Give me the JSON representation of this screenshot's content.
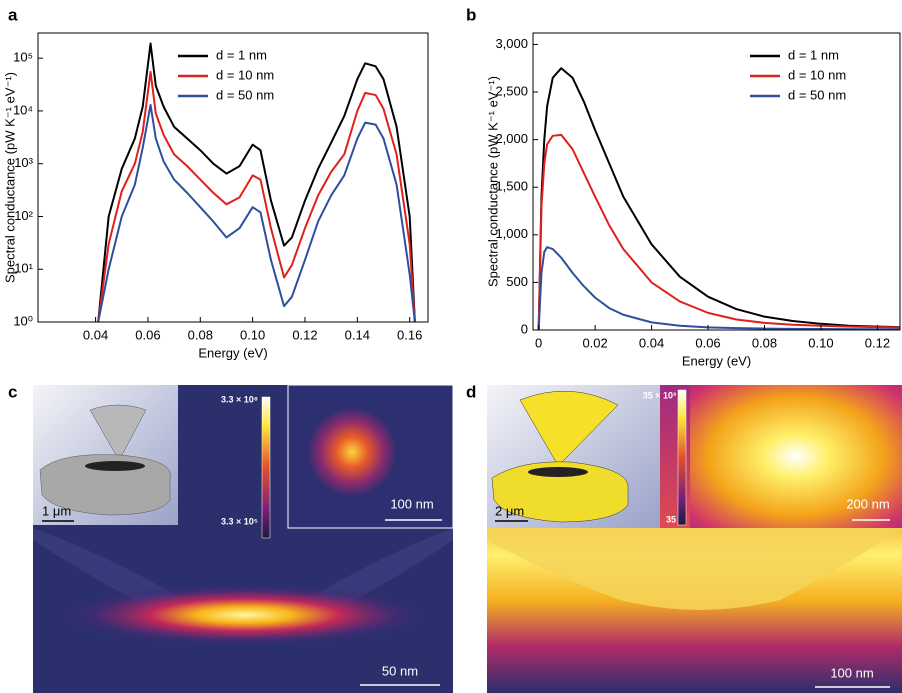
{
  "chart_data": [
    {
      "type": "line",
      "panel_label": "a",
      "x_label": "Energy (eV)",
      "y_label": "Spectral conductance (pW K⁻¹ eV⁻¹)",
      "yscale": "log",
      "legend": "upper center",
      "xlim": [
        0.018,
        0.167
      ],
      "ylim": [
        1,
        300000
      ],
      "xticks": [
        0.04,
        0.06,
        0.08,
        {
          "value": 0.1,
          "label": "0.10"
        },
        0.12,
        0.14,
        0.16
      ],
      "yticks": [
        {
          "value": 1,
          "label": "10⁰"
        },
        {
          "value": 10,
          "label": "10¹"
        },
        {
          "value": 100,
          "label": "10²"
        },
        {
          "value": 1000,
          "label": "10³"
        },
        {
          "value": 10000,
          "label": "10⁴"
        },
        {
          "value": 100000,
          "label": "10⁵"
        }
      ],
      "x": [
        0.041,
        0.045,
        0.05,
        0.055,
        0.058,
        0.061,
        0.063,
        0.066,
        0.07,
        0.075,
        0.08,
        0.085,
        0.09,
        0.095,
        0.1,
        0.103,
        0.107,
        0.112,
        0.115,
        0.12,
        0.125,
        0.13,
        0.135,
        0.14,
        0.143,
        0.147,
        0.15,
        0.155,
        0.16,
        0.162
      ],
      "series": [
        {
          "name": "d = 1 nm",
          "color": "#000000",
          "values": [
            1,
            100,
            800,
            3000,
            12000,
            190000,
            30000,
            12000,
            5000,
            3000,
            1800,
            1000,
            650,
            900,
            2300,
            1800,
            200,
            28,
            40,
            200,
            800,
            2500,
            8000,
            40000,
            80000,
            70000,
            40000,
            5000,
            100,
            1
          ]
        },
        {
          "name": "d = 10 nm",
          "color": "#e0201b",
          "values": [
            1,
            30,
            300,
            1000,
            4000,
            55000,
            9000,
            3500,
            1500,
            900,
            500,
            280,
            170,
            230,
            600,
            500,
            60,
            7,
            12,
            60,
            250,
            700,
            1500,
            10000,
            22000,
            20000,
            11000,
            1500,
            30,
            1
          ]
        },
        {
          "name": "d = 50 nm",
          "color": "#2d4f9e",
          "values": [
            1,
            10,
            100,
            400,
            2000,
            13000,
            3000,
            1100,
            500,
            280,
            150,
            80,
            40,
            60,
            150,
            120,
            15,
            2,
            3,
            15,
            80,
            250,
            600,
            3000,
            6000,
            5500,
            3000,
            400,
            8,
            1
          ]
        }
      ]
    },
    {
      "type": "line",
      "panel_label": "b",
      "x_label": "Energy (eV)",
      "y_label": "Spectral conductance (pW K⁻¹ eV⁻¹)",
      "yscale": "linear",
      "legend": "upper right",
      "xlim": [
        -0.002,
        0.128
      ],
      "ylim": [
        0,
        3120
      ],
      "xticks": [
        0,
        0.02,
        0.04,
        0.06,
        0.08,
        {
          "value": 0.1,
          "label": "0.10"
        },
        0.12
      ],
      "yticks": [
        0,
        500,
        {
          "value": 1000,
          "label": "1,000"
        },
        {
          "value": 1500,
          "label": "1,500"
        },
        {
          "value": 2000,
          "label": "2,000"
        },
        {
          "value": 2500,
          "label": "2,500"
        },
        {
          "value": 3000,
          "label": "3,000"
        }
      ],
      "x": [
        0,
        0.001,
        0.002,
        0.003,
        0.005,
        0.008,
        0.012,
        0.016,
        0.02,
        0.025,
        0.03,
        0.04,
        0.05,
        0.06,
        0.07,
        0.08,
        0.09,
        0.1,
        0.11,
        0.12,
        0.128
      ],
      "series": [
        {
          "name": "d = 1 nm",
          "color": "#000000",
          "values": [
            0,
            1400,
            2000,
            2350,
            2650,
            2750,
            2650,
            2400,
            2100,
            1750,
            1400,
            900,
            560,
            350,
            220,
            140,
            95,
            65,
            45,
            35,
            30
          ]
        },
        {
          "name": "d = 10 nm",
          "color": "#e0201b",
          "values": [
            0,
            1300,
            1750,
            1950,
            2040,
            2050,
            1900,
            1650,
            1400,
            1100,
            850,
            500,
            300,
            180,
            110,
            75,
            55,
            45,
            35,
            30,
            28
          ]
        },
        {
          "name": "d = 50 nm",
          "color": "#2d4f9e",
          "values": [
            0,
            600,
            820,
            870,
            850,
            760,
            600,
            460,
            340,
            230,
            160,
            80,
            45,
            28,
            20,
            15,
            12,
            10,
            9,
            8,
            8
          ]
        }
      ]
    }
  ],
  "panels": {
    "c": {
      "label": "c",
      "scale_inset": "1 μm",
      "colorbar_max": "3.3 × 10⁸",
      "colorbar_min": "3.3 × 10⁵",
      "scale_zoom": "100 nm",
      "scale_main": "50 nm"
    },
    "d": {
      "label": "d",
      "scale_inset": "2 μm",
      "colorbar_max": "35 × 10³",
      "colorbar_min": "35",
      "scale_zoom": "200 nm",
      "scale_main": "100 nm"
    }
  }
}
